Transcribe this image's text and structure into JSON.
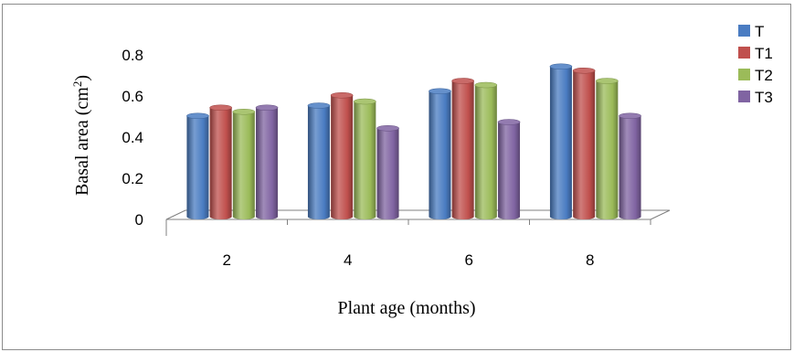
{
  "chart_data": {
    "type": "bar",
    "categories": [
      "2",
      "4",
      "6",
      "8"
    ],
    "series": [
      {
        "name": "T",
        "values": [
          0.49,
          0.54,
          0.61,
          0.73
        ],
        "color": "#4a7cc2"
      },
      {
        "name": "T1",
        "values": [
          0.53,
          0.59,
          0.66,
          0.71
        ],
        "color": "#c0504d"
      },
      {
        "name": "T2",
        "values": [
          0.51,
          0.56,
          0.64,
          0.66
        ],
        "color": "#9bbb59"
      },
      {
        "name": "T3",
        "values": [
          0.53,
          0.43,
          0.46,
          0.49
        ],
        "color": "#8064a2"
      }
    ],
    "y_ticks": [
      "0",
      "0.2",
      "0.4",
      "0.6",
      "0.8"
    ],
    "ylim": [
      0,
      0.8
    ],
    "xlabel": "Plant age (months)",
    "ylabel": "Basal area (cm",
    "ylabel_sup": "2",
    "ylabel_end": ")",
    "legend_position": "top-right",
    "grid": false
  }
}
